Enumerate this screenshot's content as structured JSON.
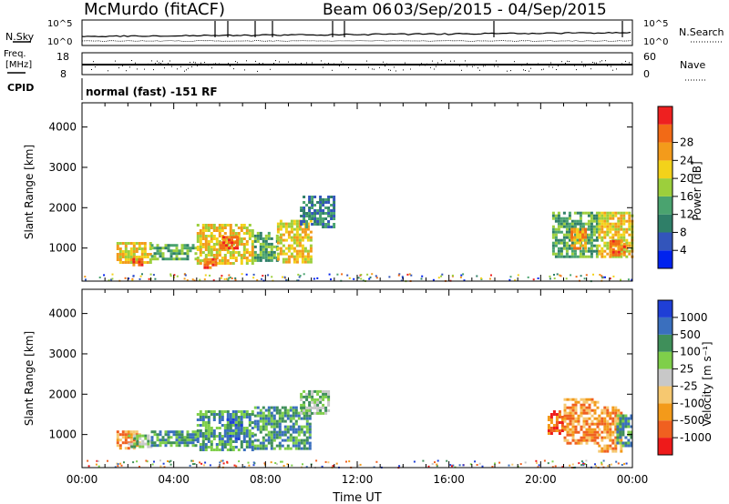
{
  "header": {
    "station": "McMurdo (fitACF)",
    "beam": "Beam 06",
    "dates": "03/Sep/2015 - 04/Sep/2015",
    "cpid_text": "normal (fast) -151 RF"
  },
  "top_panels": {
    "left_labels": {
      "nsky": "N.Sky",
      "freq_line1": "Freq.",
      "freq_line2": "[MHz]",
      "cpid": "CPID"
    },
    "right_labels": {
      "nsearch": "N.Search",
      "nave": "Nave"
    },
    "noise_ticks_left": [
      "10^5",
      "10^0"
    ],
    "noise_ticks_right": [
      "10^5",
      "10^0"
    ],
    "freq_ticks": [
      "18",
      "8"
    ],
    "nave_ticks": [
      "60",
      "0"
    ]
  },
  "colors": {
    "power_scale": [
      "#0022ee",
      "#3355bb",
      "#2f7f68",
      "#4aa36f",
      "#9ccf3c",
      "#f3d21a",
      "#f39b1b",
      "#f26a16",
      "#ee2020"
    ],
    "velocity_scale": [
      "#ee1a1a",
      "#f06020",
      "#f39a1a",
      "#f6c870",
      "#c8c8c8",
      "#7fcf4a",
      "#3f8f5a",
      "#3a6fbe",
      "#1f3fd6"
    ]
  },
  "chart_data": [
    {
      "type": "heatmap",
      "quantity": "Power",
      "xlabel": "",
      "ylabel": "Slant Range [km]",
      "x_unit": "hours UT",
      "xlim": [
        0,
        24
      ],
      "ylim": [
        180,
        4600
      ],
      "yticks": [
        "1000",
        "2000",
        "3000",
        "4000"
      ],
      "colorbar": {
        "label": "Power [dB]",
        "ticks": [
          "4",
          "8",
          "12",
          "16",
          "20",
          "24",
          "28"
        ]
      },
      "regions": [
        {
          "x": [
            1.5,
            3.0
          ],
          "y": [
            650,
            1150
          ],
          "value": 18
        },
        {
          "x": [
            2.2,
            2.6
          ],
          "y": [
            600,
            750
          ],
          "value": 28
        },
        {
          "x": [
            3.0,
            5.0
          ],
          "y": [
            700,
            1100
          ],
          "value": 14
        },
        {
          "x": [
            5.0,
            7.5
          ],
          "y": [
            650,
            1600
          ],
          "value": 20
        },
        {
          "x": [
            5.3,
            5.8
          ],
          "y": [
            480,
            750
          ],
          "value": 28
        },
        {
          "x": [
            6.0,
            6.8
          ],
          "y": [
            1000,
            1300
          ],
          "value": 26
        },
        {
          "x": [
            7.5,
            8.5
          ],
          "y": [
            700,
            1400
          ],
          "value": 12
        },
        {
          "x": [
            8.5,
            10.0
          ],
          "y": [
            650,
            1700
          ],
          "value": 19
        },
        {
          "x": [
            9.5,
            11.0
          ],
          "y": [
            1500,
            2300
          ],
          "value": 8
        },
        {
          "x": [
            20.5,
            22.5
          ],
          "y": [
            800,
            1900
          ],
          "value": 14
        },
        {
          "x": [
            21.3,
            22.0
          ],
          "y": [
            1000,
            1500
          ],
          "value": 24
        },
        {
          "x": [
            22.5,
            24.0
          ],
          "y": [
            750,
            1900
          ],
          "value": 18
        },
        {
          "x": [
            23.0,
            23.6
          ],
          "y": [
            800,
            1200
          ],
          "value": 28
        }
      ]
    },
    {
      "type": "heatmap",
      "quantity": "Velocity",
      "xlabel": "Time UT",
      "ylabel": "Slant Range [km]",
      "x_unit": "hours UT",
      "xlim": [
        0,
        24
      ],
      "ylim": [
        180,
        4600
      ],
      "xticks": [
        "00:00",
        "04:00",
        "08:00",
        "12:00",
        "16:00",
        "20:00",
        "00:00"
      ],
      "yticks": [
        "1000",
        "2000",
        "3000",
        "4000"
      ],
      "colorbar": {
        "label": "Velocity [m s⁻¹]",
        "ticks": [
          "-1000",
          "-500",
          "-100",
          "-25",
          "25",
          "100",
          "500",
          "1000"
        ]
      },
      "regions": [
        {
          "x": [
            1.5,
            2.5
          ],
          "y": [
            650,
            1100
          ],
          "value": -100
        },
        {
          "x": [
            2.0,
            3.0
          ],
          "y": [
            700,
            1000
          ],
          "value": 100
        },
        {
          "x": [
            3.0,
            5.0
          ],
          "y": [
            700,
            1100
          ],
          "value": 300
        },
        {
          "x": [
            5.0,
            7.5
          ],
          "y": [
            600,
            1600
          ],
          "value": 300
        },
        {
          "x": [
            6.3,
            6.9
          ],
          "y": [
            900,
            1400
          ],
          "value": 900
        },
        {
          "x": [
            7.5,
            10.0
          ],
          "y": [
            650,
            1700
          ],
          "value": 300
        },
        {
          "x": [
            9.5,
            10.7
          ],
          "y": [
            1500,
            2100
          ],
          "value": 100
        },
        {
          "x": [
            20.3,
            21.0
          ],
          "y": [
            1000,
            1600
          ],
          "value": -500
        },
        {
          "x": [
            21.0,
            22.5
          ],
          "y": [
            800,
            1900
          ],
          "value": -100
        },
        {
          "x": [
            22.5,
            23.5
          ],
          "y": [
            600,
            1700
          ],
          "value": -100
        },
        {
          "x": [
            23.3,
            24.0
          ],
          "y": [
            700,
            1500
          ],
          "value": 300
        }
      ]
    }
  ]
}
